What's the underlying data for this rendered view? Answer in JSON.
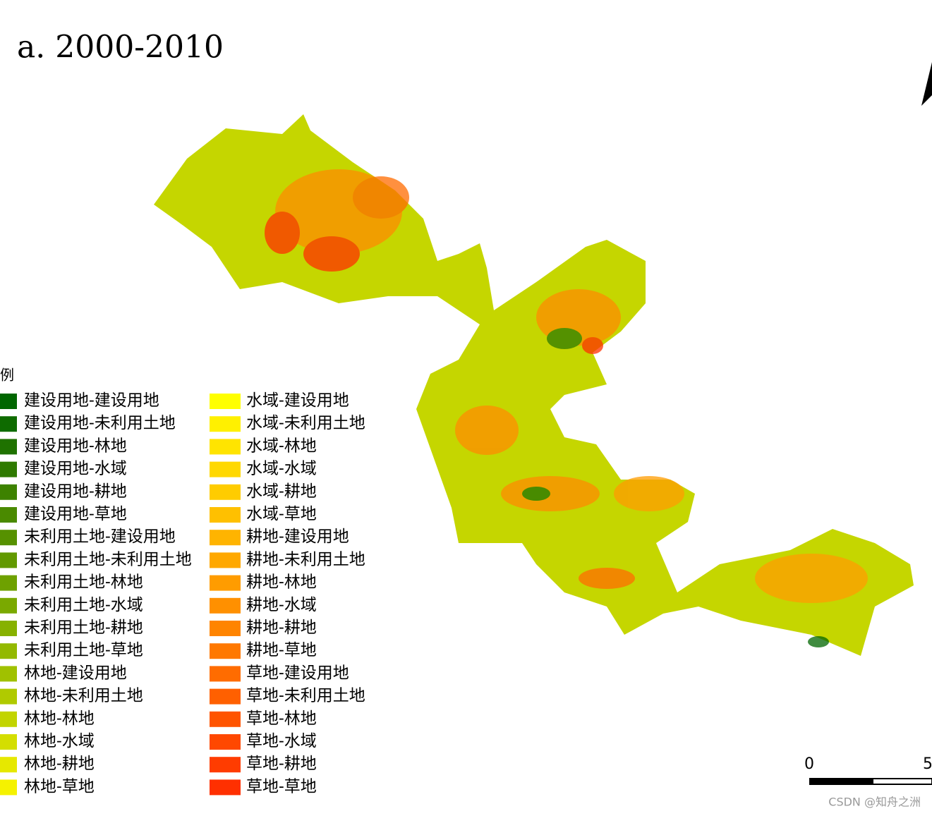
{
  "title": "a. 2000-2010",
  "legend": {
    "title": "图例",
    "columns": [
      [
        {
          "label": "建设用地-建设用地",
          "color": "#006600"
        },
        {
          "label": "建设用地-未利用土地",
          "color": "#0e6b00"
        },
        {
          "label": "建设用地-林地",
          "color": "#1f7200"
        },
        {
          "label": "建设用地-水域",
          "color": "#2f7a00"
        },
        {
          "label": "建设用地-耕地",
          "color": "#3d8200"
        },
        {
          "label": "建设用地-草地",
          "color": "#4a8a00"
        },
        {
          "label": "未利用土地-建设用地",
          "color": "#569100"
        },
        {
          "label": "未利用土地-未利用土地",
          "color": "#629900"
        },
        {
          "label": "未利用土地-林地",
          "color": "#6ea100"
        },
        {
          "label": "未利用土地-水域",
          "color": "#7aa900"
        },
        {
          "label": "未利用土地-耕地",
          "color": "#87b100"
        },
        {
          "label": "未利用土地-草地",
          "color": "#93b900"
        },
        {
          "label": "林地-建设用地",
          "color": "#a0c100"
        },
        {
          "label": "林地-未利用土地",
          "color": "#b0ca00"
        },
        {
          "label": "林地-林地",
          "color": "#c2d400"
        },
        {
          "label": "林地-水域",
          "color": "#d4de00"
        },
        {
          "label": "林地-耕地",
          "color": "#e6e800"
        },
        {
          "label": "林地-草地",
          "color": "#f5f200"
        }
      ],
      [
        {
          "label": "水域-建设用地",
          "color": "#ffff00"
        },
        {
          "label": "水域-未利用土地",
          "color": "#fff000"
        },
        {
          "label": "水域-林地",
          "color": "#ffe400"
        },
        {
          "label": "水域-水域",
          "color": "#ffd800"
        },
        {
          "label": "水域-耕地",
          "color": "#ffcc00"
        },
        {
          "label": "水域-草地",
          "color": "#ffc000"
        },
        {
          "label": "耕地-建设用地",
          "color": "#ffb400"
        },
        {
          "label": "耕地-未利用土地",
          "color": "#ffa800"
        },
        {
          "label": "耕地-林地",
          "color": "#ff9c00"
        },
        {
          "label": "耕地-水域",
          "color": "#ff9000"
        },
        {
          "label": "耕地-耕地",
          "color": "#ff8400"
        },
        {
          "label": "耕地-草地",
          "color": "#ff7800"
        },
        {
          "label": "草地-建设用地",
          "color": "#ff6c00"
        },
        {
          "label": "草地-未利用土地",
          "color": "#ff6000"
        },
        {
          "label": "草地-林地",
          "color": "#ff5400"
        },
        {
          "label": "草地-水域",
          "color": "#ff4800"
        },
        {
          "label": "草地-耕地",
          "color": "#ff3c00"
        },
        {
          "label": "草地-草地",
          "color": "#ff3000"
        }
      ]
    ]
  },
  "scale_bar": {
    "labels": [
      "0",
      "5"
    ]
  },
  "watermark": "CSDN @知舟之洲"
}
